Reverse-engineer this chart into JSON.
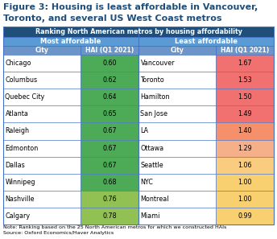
{
  "title_line1": "Figure 3: Housing is least affordable in Vancouver,",
  "title_line2": "Toronto, and several US West Coast metros",
  "table_header": "Ranking North American metros by housing affordability",
  "subheader_left": "Most affordable",
  "subheader_right": "Least affordable",
  "col_headers": [
    "City",
    "HAI (Q1 2021)",
    "City",
    "HAI (Q1 2021)"
  ],
  "left_cities": [
    "Chicago",
    "Columbus",
    "Quebec City",
    "Atlanta",
    "Raleigh",
    "Edmonton",
    "Dallas",
    "Winnipeg",
    "Nashville",
    "Calgary"
  ],
  "left_values": [
    "0.60",
    "0.62",
    "0.64",
    "0.65",
    "0.67",
    "0.67",
    "0.67",
    "0.68",
    "0.76",
    "0.78"
  ],
  "right_cities": [
    "Vancouver",
    "Toronto",
    "Hamilton",
    "San Jose",
    "LA",
    "Ottawa",
    "Seattle",
    "NYC",
    "Montreal",
    "Miami"
  ],
  "right_values": [
    "1.67",
    "1.53",
    "1.50",
    "1.49",
    "1.40",
    "1.29",
    "1.06",
    "1.00",
    "1.00",
    "0.99"
  ],
  "note_line1": "Note: Ranking based on the 25 North American metros for which we constructed HAIs",
  "note_line2": "Source: Oxford Economics/Haver Analytics",
  "header_bg": "#1f4e79",
  "subheader_bg": "#5b9bd5",
  "col_header_bg": "#6b95c8",
  "title_color": "#1f4e79",
  "green_colors": [
    "#4dab57",
    "#4dab57",
    "#4dab57",
    "#4dab57",
    "#4dab57",
    "#4dab57",
    "#4dab57",
    "#4dab57",
    "#92c153",
    "#92c153"
  ],
  "red_colors": [
    "#f17070",
    "#f17070",
    "#f17070",
    "#f17070",
    "#f5906a",
    "#f5b08a",
    "#f9cc80",
    "#f9d070",
    "#f9d070",
    "#f9d070"
  ],
  "border_color": "#4472c4",
  "white": "#ffffff",
  "black": "#000000"
}
